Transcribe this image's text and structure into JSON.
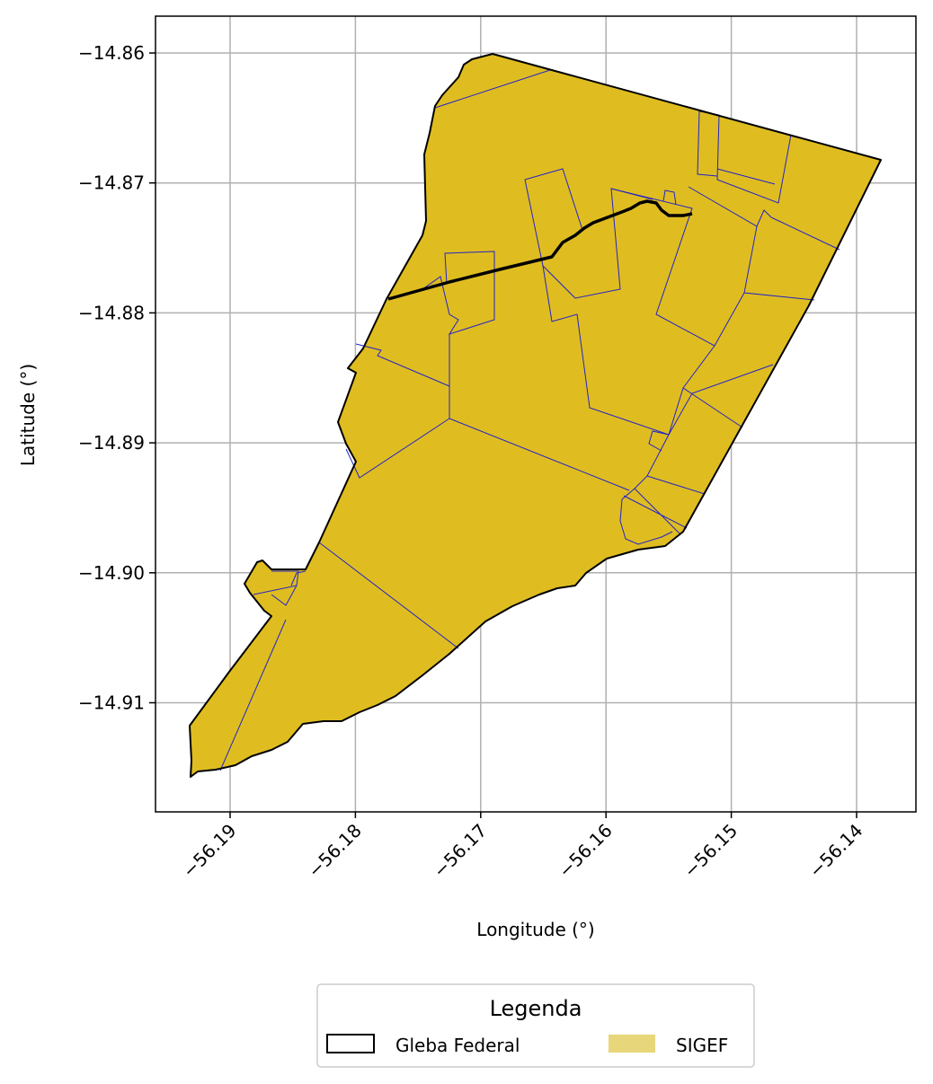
{
  "chart_data": {
    "type": "map",
    "xlabel": "Longitude (°)",
    "ylabel": "Latitude (°)",
    "xticks": [
      "−56.19",
      "−56.18",
      "−56.17",
      "−56.16",
      "−56.15",
      "−56.14"
    ],
    "yticks": [
      "−14.86",
      "−14.87",
      "−14.88",
      "−14.89",
      "−14.90",
      "−14.91"
    ],
    "xlim": [
      -56.196,
      -56.1355
    ],
    "ylim": [
      -14.9186,
      -14.8572
    ],
    "grid": true,
    "legend": {
      "title": "Legenda",
      "placement": "bottom-center",
      "entries": [
        {
          "label": "Gleba Federal",
          "style": "outline",
          "color": "#000000"
        },
        {
          "label": "SIGEF",
          "style": "fill",
          "color": "#E8D67A"
        }
      ]
    },
    "colors": {
      "sigef_fill": "#DFBD20",
      "parcel_lines": "#2323C8",
      "boundary": "#000000",
      "grid": "#B0B0B0"
    }
  }
}
